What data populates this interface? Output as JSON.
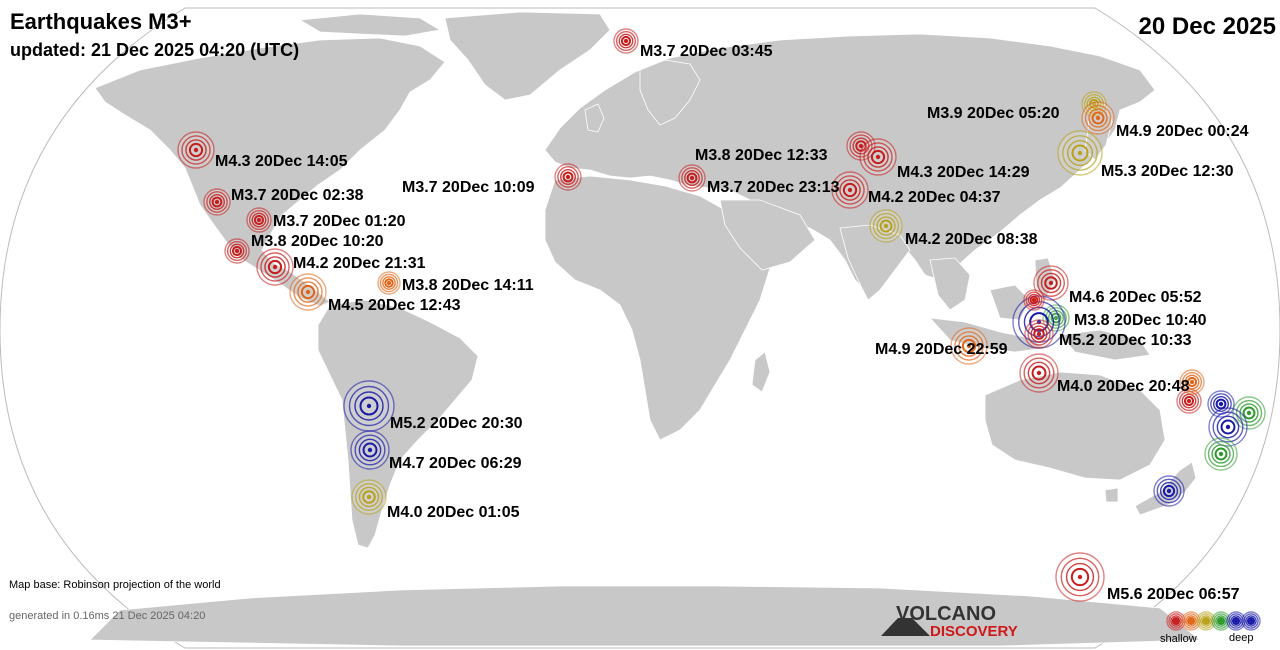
{
  "header": {
    "title": "Earthquakes M3+",
    "updated": "updated: 21 Dec 2025 04:20 (UTC)",
    "date": "20 Dec 2025"
  },
  "footer": {
    "map_base": "Map base: Robinson projection of the world",
    "generated": "generated in 0.16ms 21 Dec 2025 04:20",
    "logo_top": "VOLCANO",
    "logo_bottom": "DISCOVERY",
    "legend_shallow": "shallow",
    "legend_deep": "deep"
  },
  "colors": {
    "ocean": "#ffffff",
    "land": "#c8c8c8",
    "border": "#ffffff",
    "shallow": "#c81e1e",
    "mid_orange": "#e0661a",
    "mid_yellow": "#b8a21a",
    "mid_green": "#2e9a2e",
    "deep_blue": "#1a1aa8",
    "logo_red": "#d01818",
    "logo_dark": "#333333"
  },
  "quakes": [
    {
      "label": "M3.7 20Dec 03:45",
      "color": "#c81e1e"
    },
    {
      "label": "M3.9 20Dec 05:20",
      "color": "#b8a21a"
    },
    {
      "label": "M4.9 20Dec 00:24",
      "color": "#e0661a"
    },
    {
      "label": "M4.3 20Dec 14:05",
      "color": "#c81e1e"
    },
    {
      "label": "M3.8 20Dec 12:33",
      "color": "#c81e1e"
    },
    {
      "label": "M4.3 20Dec 14:29",
      "color": "#c81e1e"
    },
    {
      "label": "M5.3 20Dec 12:30",
      "color": "#b8a21a"
    },
    {
      "label": "M3.7 20Dec 02:38",
      "color": "#c81e1e"
    },
    {
      "label": "M3.7 20Dec 10:09",
      "color": "#c81e1e"
    },
    {
      "label": "M3.7 20Dec 23:13",
      "color": "#c81e1e"
    },
    {
      "label": "M4.2 20Dec 04:37",
      "color": "#c81e1e"
    },
    {
      "label": "M3.7 20Dec 01:20",
      "color": "#c81e1e"
    },
    {
      "label": "M4.2 20Dec 08:38",
      "color": "#b8a21a"
    },
    {
      "label": "M3.8 20Dec 10:20",
      "color": "#c81e1e"
    },
    {
      "label": "M4.2 20Dec 21:31",
      "color": "#c81e1e"
    },
    {
      "label": "M3.8 20Dec 14:11",
      "color": "#e0661a"
    },
    {
      "label": "M4.5 20Dec 12:43",
      "color": "#e0661a"
    },
    {
      "label": "M4.6 20Dec 05:52",
      "color": "#c81e1e"
    },
    {
      "label": "M3.8 20Dec 10:40",
      "color": "#2e9a2e"
    },
    {
      "label": "M5.2 20Dec 10:33",
      "color": "#1a1aa8"
    },
    {
      "label": "M4.9 20Dec 22:59",
      "color": "#e0661a"
    },
    {
      "label": "M4.0 20Dec 20:48",
      "color": "#c81e1e"
    },
    {
      "label": "M5.2 20Dec 20:30",
      "color": "#1a1aa8"
    },
    {
      "label": "M4.7 20Dec 06:29",
      "color": "#1a1aa8"
    },
    {
      "label": "M4.0 20Dec 01:05",
      "color": "#b8a21a"
    },
    {
      "label": "M5.6 20Dec 06:57",
      "color": "#c81e1e"
    }
  ],
  "extra_markers": [
    {
      "color": "#c81e1e"
    },
    {
      "color": "#e0661a"
    },
    {
      "color": "#1a1aa8"
    },
    {
      "color": "#2e9a2e"
    },
    {
      "color": "#1a1aa8"
    },
    {
      "color": "#2e9a2e"
    },
    {
      "color": "#1a1aa8"
    },
    {
      "color": "#c81e1e"
    },
    {
      "color": "#c81e1e"
    }
  ],
  "legend_colors": [
    "#c81e1e",
    "#e0661a",
    "#b8a21a",
    "#2e9a2e",
    "#1a1aa8",
    "#1a1aa8"
  ]
}
